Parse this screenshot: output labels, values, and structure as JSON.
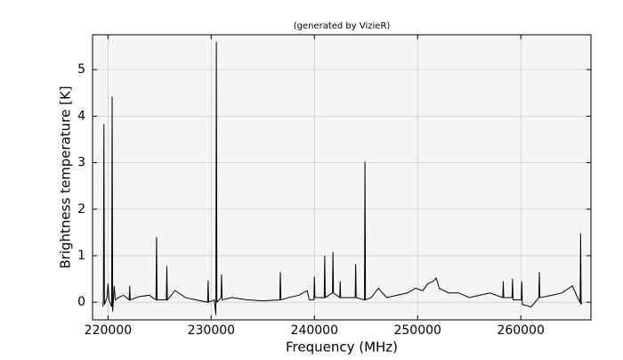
{
  "chart_data": {
    "type": "line",
    "title": "(generated by VizieR)",
    "x_label": "Frequency (MHz)",
    "y_label": "Brightness temperature [K]",
    "x": [
      219500,
      219550,
      219600,
      219650,
      219900,
      220000,
      220100,
      220350,
      220400,
      220450,
      220600,
      220700,
      221000,
      221500,
      222050,
      222100,
      222150,
      223000,
      224000,
      224650,
      224700,
      224750,
      225650,
      225700,
      225750,
      226500,
      227500,
      228500,
      229650,
      229700,
      229750,
      230300,
      230450,
      230500,
      230550,
      230950,
      231000,
      231050,
      232000,
      233500,
      235000,
      236650,
      236700,
      236750,
      237500,
      238500,
      239300,
      239500,
      239950,
      240000,
      240050,
      240950,
      241000,
      241050,
      241750,
      241800,
      241850,
      242450,
      242500,
      242550,
      243950,
      244000,
      244050,
      244850,
      244900,
      244950,
      245500,
      246200,
      247000,
      248000,
      249000,
      249800,
      250500,
      251000,
      251500,
      251800,
      252100,
      253000,
      254000,
      255000,
      256000,
      257000,
      258250,
      258300,
      258350,
      259150,
      259200,
      259250,
      260050,
      260100,
      260150,
      261000,
      261750,
      261800,
      261850,
      263000,
      264000,
      265000,
      265500,
      265750,
      265800,
      265850,
      265900
    ],
    "values": [
      -0.1,
      0.05,
      3.83,
      -0.05,
      0.1,
      0.4,
      0.05,
      -0.1,
      4.42,
      -0.2,
      0.35,
      0.05,
      0.1,
      0.15,
      0.05,
      0.35,
      0.05,
      0.12,
      0.15,
      0.05,
      1.4,
      0.05,
      0.05,
      0.78,
      0.05,
      0.25,
      0.1,
      0.05,
      0,
      0.47,
      0,
      0.05,
      -0.27,
      5.6,
      0,
      0.1,
      0.6,
      0.05,
      0.1,
      0.05,
      0.03,
      0.05,
      0.65,
      0.05,
      0.1,
      0.15,
      0.25,
      0.05,
      0.05,
      0.55,
      0.1,
      0.1,
      1.0,
      0.1,
      0.2,
      1.08,
      0.2,
      0.1,
      0.45,
      0.1,
      0.1,
      0.82,
      0.1,
      0.05,
      3.02,
      0.05,
      0.1,
      0.3,
      0.1,
      0.15,
      0.2,
      0.3,
      0.25,
      0.4,
      0.45,
      0.52,
      0.3,
      0.2,
      0.2,
      0.1,
      0.15,
      0.2,
      0.1,
      0.45,
      0.1,
      0.1,
      0.5,
      0.05,
      0.05,
      0.45,
      -0.05,
      -0.1,
      0.1,
      0.65,
      0.1,
      0.15,
      0.2,
      0.35,
      0.1,
      0,
      1.48,
      -0.05,
      0
    ],
    "color": "#000000",
    "xlim": [
      218500,
      266800
    ],
    "xticks": [
      220000,
      230000,
      240000,
      250000,
      260000
    ],
    "ylim": [
      -0.38,
      5.75
    ],
    "yticks": [
      0,
      1,
      2,
      3,
      4,
      5
    ],
    "grid": true
  }
}
